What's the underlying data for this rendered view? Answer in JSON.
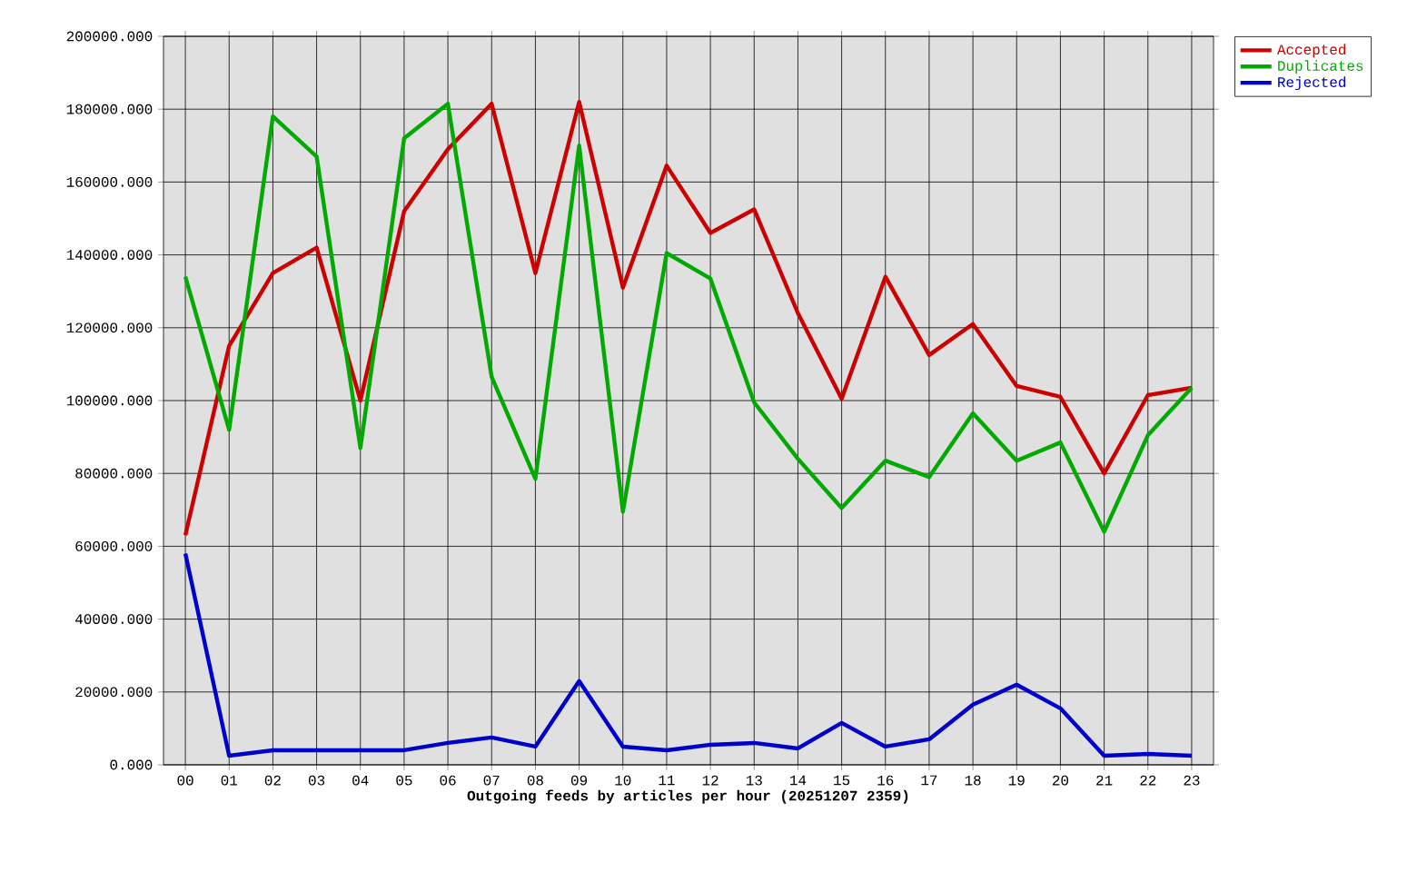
{
  "chart_data": {
    "type": "line",
    "xlabel": "Outgoing feeds by articles per hour (20251207 2359)",
    "categories": [
      "00",
      "01",
      "02",
      "03",
      "04",
      "05",
      "06",
      "07",
      "08",
      "09",
      "10",
      "11",
      "12",
      "13",
      "14",
      "15",
      "16",
      "17",
      "18",
      "19",
      "20",
      "21",
      "22",
      "23"
    ],
    "series": [
      {
        "name": "Accepted",
        "color": "#cc0000",
        "values": [
          63000,
          115000,
          135000,
          142000,
          100000,
          152000,
          169000,
          181500,
          135000,
          182000,
          131000,
          164500,
          146000,
          152500,
          124000,
          100500,
          134000,
          112500,
          121000,
          104000,
          101000,
          80000,
          101500,
          103500
        ]
      },
      {
        "name": "Duplicates",
        "color": "#00aa00",
        "values": [
          134000,
          92000,
          178000,
          167000,
          87000,
          172000,
          181500,
          106500,
          78500,
          170000,
          69500,
          140500,
          133500,
          99500,
          84000,
          70500,
          83500,
          79000,
          96500,
          83500,
          88500,
          64000,
          90500,
          103500
        ]
      },
      {
        "name": "Rejected",
        "color": "#0000cc",
        "values": [
          58000,
          2500,
          4000,
          4000,
          4000,
          4000,
          6000,
          7500,
          5000,
          23000,
          5000,
          4000,
          5500,
          6000,
          4500,
          11500,
          5000,
          7000,
          16500,
          22000,
          15500,
          2500,
          3000,
          2500
        ]
      }
    ],
    "ylim": [
      0,
      200000
    ],
    "yticks": [
      {
        "value": 0,
        "label": "0.000"
      },
      {
        "value": 20000,
        "label": "20000.000"
      },
      {
        "value": 40000,
        "label": "40000.000"
      },
      {
        "value": 60000,
        "label": "60000.000"
      },
      {
        "value": 80000,
        "label": "80000.000"
      },
      {
        "value": 100000,
        "label": "100000.000"
      },
      {
        "value": 120000,
        "label": "120000.000"
      },
      {
        "value": 140000,
        "label": "140000.000"
      },
      {
        "value": 160000,
        "label": "160000.000"
      },
      {
        "value": 180000,
        "label": "180000.000"
      },
      {
        "value": 200000,
        "label": "200000.000"
      }
    ],
    "grid": true,
    "legend": "top right",
    "marker": "none",
    "line_style": "solid"
  }
}
